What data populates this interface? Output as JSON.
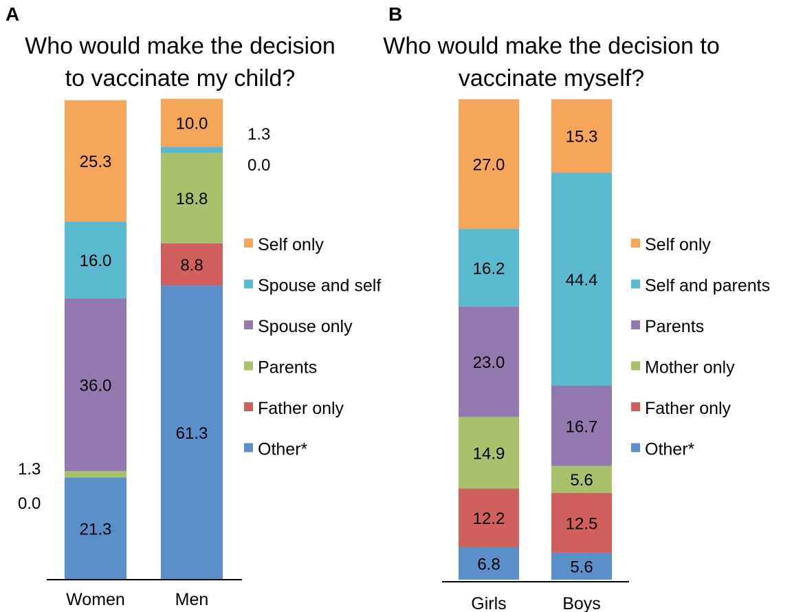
{
  "chart_data": [
    {
      "type": "bar",
      "stacked": true,
      "normalized_percent": true,
      "panel": "A",
      "title": "Who would make the decision to vaccinate my child?",
      "title_lines": [
        "Who would make the decision",
        "to vaccinate my child?"
      ],
      "categories": [
        "Women",
        "Men"
      ],
      "series": [
        {
          "name": "Other*",
          "color": "#5B8FC9",
          "values": [
            21.3,
            61.3
          ]
        },
        {
          "name": "Father only",
          "color": "#D0605E",
          "values": [
            0.0,
            8.8
          ]
        },
        {
          "name": "Parents",
          "color": "#A8C16A",
          "values": [
            1.3,
            18.8
          ]
        },
        {
          "name": "Spouse only",
          "color": "#9379B0",
          "values": [
            36.0,
            0.0
          ]
        },
        {
          "name": "Spouse and self",
          "color": "#5BB9CF",
          "values": [
            16.0,
            1.3
          ]
        },
        {
          "name": "Self only",
          "color": "#F6A65A",
          "values": [
            25.3,
            10.0
          ]
        }
      ],
      "value_labels": [
        {
          "category": "Women",
          "series": "Other*",
          "text": "21.3"
        },
        {
          "category": "Women",
          "series": "Spouse only",
          "text": "36.0"
        },
        {
          "category": "Women",
          "series": "Spouse and self",
          "text": "16.0"
        },
        {
          "category": "Women",
          "series": "Self only",
          "text": "25.3"
        },
        {
          "category": "Men",
          "series": "Other*",
          "text": "61.3"
        },
        {
          "category": "Men",
          "series": "Father only",
          "text": "8.8"
        },
        {
          "category": "Men",
          "series": "Parents",
          "text": "18.8"
        },
        {
          "category": "Men",
          "series": "Self only",
          "text": "10.0"
        }
      ],
      "side_labels": [
        {
          "category": "Women",
          "side": "left",
          "texts": [
            "1.3",
            "0.0"
          ]
        },
        {
          "category": "Men",
          "side": "right",
          "texts": [
            "1.3",
            "0.0"
          ]
        }
      ],
      "legend": {
        "position": "right",
        "order": [
          "Self only",
          "Spouse and self",
          "Spouse only",
          "Parents",
          "Father only",
          "Other*"
        ]
      },
      "ylim": [
        0,
        100
      ],
      "xlabel": "",
      "ylabel": ""
    },
    {
      "type": "bar",
      "stacked": true,
      "normalized_percent": true,
      "panel": "B",
      "title": "Who would make the decision to vaccinate myself?",
      "title_lines": [
        "Who would make the decision to",
        "vaccinate myself?"
      ],
      "categories": [
        "Girls",
        "Boys"
      ],
      "series": [
        {
          "name": "Other*",
          "color": "#5B8FC9",
          "values": [
            6.8,
            5.6
          ]
        },
        {
          "name": "Father only",
          "color": "#D0605E",
          "values": [
            12.2,
            12.5
          ]
        },
        {
          "name": "Mother only",
          "color": "#A8C16A",
          "values": [
            14.9,
            5.6
          ]
        },
        {
          "name": "Parents",
          "color": "#9379B0",
          "values": [
            23.0,
            16.7
          ]
        },
        {
          "name": "Self and parents",
          "color": "#5BB9CF",
          "values": [
            16.2,
            44.4
          ]
        },
        {
          "name": "Self only",
          "color": "#F6A65A",
          "values": [
            27.0,
            15.3
          ]
        }
      ],
      "value_labels": [
        {
          "category": "Girls",
          "series": "Other*",
          "text": "6.8"
        },
        {
          "category": "Girls",
          "series": "Father only",
          "text": "12.2"
        },
        {
          "category": "Girls",
          "series": "Mother only",
          "text": "14.9"
        },
        {
          "category": "Girls",
          "series": "Parents",
          "text": "23.0"
        },
        {
          "category": "Girls",
          "series": "Self and parents",
          "text": "16.2"
        },
        {
          "category": "Girls",
          "series": "Self only",
          "text": "27.0"
        },
        {
          "category": "Boys",
          "series": "Other*",
          "text": "5.6"
        },
        {
          "category": "Boys",
          "series": "Father only",
          "text": "12.5"
        },
        {
          "category": "Boys",
          "series": "Mother only",
          "text": "5.6"
        },
        {
          "category": "Boys",
          "series": "Parents",
          "text": "16.7"
        },
        {
          "category": "Boys",
          "series": "Self and parents",
          "text": "44.4"
        },
        {
          "category": "Boys",
          "series": "Self only",
          "text": "15.3"
        }
      ],
      "side_labels": [],
      "legend": {
        "position": "right",
        "order": [
          "Self only",
          "Self and parents",
          "Parents",
          "Mother only",
          "Father only",
          "Other*"
        ]
      },
      "ylim": [
        0,
        100
      ],
      "xlabel": "",
      "ylabel": ""
    }
  ]
}
